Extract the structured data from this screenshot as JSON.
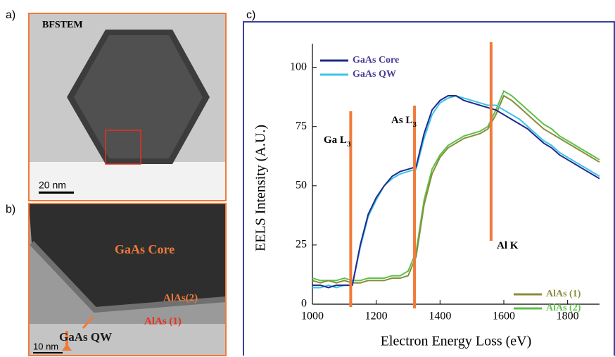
{
  "panels": {
    "a": {
      "label": "a)",
      "caption": "BFSTEM",
      "scale": "20 nm"
    },
    "b": {
      "label": "b)",
      "core": "GaAs Core",
      "shell2": "AlAs(2)",
      "shell1": "AlAs (1)",
      "qw": "GaAs QW",
      "scale": "10 nm"
    },
    "c": {
      "label": "c)"
    }
  },
  "chart_data": {
    "type": "line",
    "xlabel": "Electron Energy Loss (eV)",
    "ylabel": "EELS Intensity (A.U.)",
    "x": [
      1000,
      1025,
      1050,
      1075,
      1100,
      1125,
      1150,
      1175,
      1200,
      1225,
      1250,
      1275,
      1300,
      1325,
      1350,
      1375,
      1400,
      1425,
      1450,
      1475,
      1500,
      1525,
      1550,
      1575,
      1600,
      1625,
      1650,
      1675,
      1700,
      1725,
      1750,
      1775,
      1800,
      1825,
      1850,
      1875,
      1900
    ],
    "xlim": [
      1000,
      1900
    ],
    "xticks": [
      1000,
      1200,
      1400,
      1600,
      1800
    ],
    "ylim": [
      0,
      110
    ],
    "yticks": [
      0,
      25,
      50,
      75,
      100
    ],
    "series": [
      {
        "name": "GaAs Core",
        "color": "#1e2a8c",
        "legend": "upper left",
        "values": [
          8,
          8,
          7,
          8,
          8,
          8,
          25,
          38,
          45,
          50,
          54,
          56,
          57,
          58,
          72,
          82,
          86,
          88,
          88,
          86,
          85,
          84,
          83,
          82,
          80,
          78,
          76,
          74,
          71,
          68,
          66,
          63,
          61,
          59,
          57,
          55,
          53
        ]
      },
      {
        "name": "GaAs QW",
        "color": "#3ec3e6",
        "legend": "upper left",
        "values": [
          7,
          7,
          8,
          7,
          8,
          8,
          24,
          37,
          44,
          50,
          53,
          55,
          56,
          57,
          70,
          80,
          85,
          87,
          88,
          87,
          86,
          85,
          84,
          84,
          82,
          80,
          78,
          75,
          72,
          69,
          67,
          64,
          62,
          60,
          58,
          56,
          54
        ]
      },
      {
        "name": "AlAs (1)",
        "color": "#8a8c3a",
        "legend": "lower right",
        "values": [
          10,
          9,
          10,
          9,
          10,
          9,
          9,
          10,
          10,
          10,
          11,
          11,
          12,
          20,
          42,
          55,
          62,
          66,
          68,
          70,
          71,
          72,
          74,
          80,
          88,
          86,
          83,
          80,
          77,
          74,
          72,
          70,
          68,
          66,
          64,
          62,
          60
        ]
      },
      {
        "name": "AlAs (2)",
        "color": "#5cc24a",
        "legend": "lower right",
        "values": [
          11,
          10,
          10,
          10,
          11,
          10,
          10,
          11,
          11,
          11,
          12,
          12,
          14,
          22,
          44,
          57,
          63,
          67,
          69,
          71,
          72,
          73,
          75,
          82,
          90,
          88,
          85,
          82,
          79,
          76,
          74,
          71,
          69,
          67,
          65,
          63,
          61
        ]
      }
    ],
    "edges": [
      {
        "label": "Ga L",
        "sub": "3",
        "x": 1120,
        "color": "#f07a3a"
      },
      {
        "label": "As L",
        "sub": "3",
        "x": 1320,
        "color": "#f07a3a"
      },
      {
        "label": "Al K",
        "x": 1560,
        "color": "#f07a3a"
      }
    ]
  }
}
